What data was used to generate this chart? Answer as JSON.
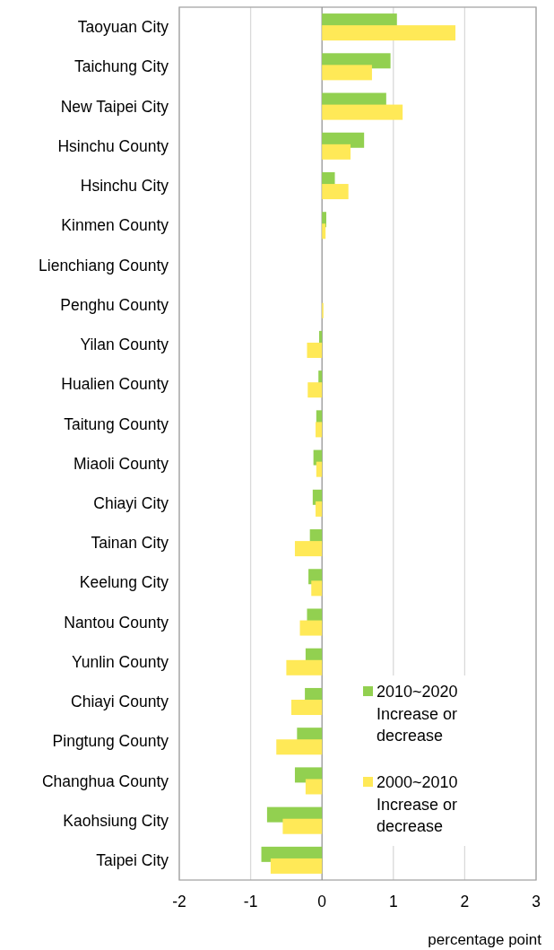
{
  "chart_data": {
    "type": "bar",
    "orientation": "horizontal",
    "xlabel": "percentage point",
    "categories": [
      "Taoyuan City",
      "Taichung City",
      "New Taipei City",
      "Hsinchu County",
      "Hsinchu City",
      "Kinmen County",
      "Lienchiang County",
      "Penghu County",
      "Yilan County",
      "Hualien County",
      "Taitung County",
      "Miaoli County",
      "Chiayi City",
      "Tainan City",
      "Keelung City",
      "Nantou County",
      "Yunlin County",
      "Chiayi County",
      "Pingtung County",
      "Changhua County",
      "Kaohsiung City",
      "Taipei City"
    ],
    "series": [
      {
        "name": "2010~2020 Increase or decrease",
        "color": "#92d050",
        "values": [
          1.05,
          0.96,
          0.9,
          0.59,
          0.18,
          0.06,
          0,
          0,
          -0.04,
          -0.05,
          -0.08,
          -0.12,
          -0.13,
          -0.17,
          -0.19,
          -0.21,
          -0.23,
          -0.24,
          -0.35,
          -0.38,
          -0.77,
          -0.85
        ]
      },
      {
        "name": "2000~2010 Increase or decrease",
        "color": "#ffe957",
        "values": [
          1.87,
          0.7,
          1.13,
          0.4,
          0.37,
          0.05,
          0,
          0.02,
          -0.21,
          -0.2,
          -0.09,
          -0.08,
          -0.09,
          -0.38,
          -0.15,
          -0.31,
          -0.5,
          -0.43,
          -0.64,
          -0.23,
          -0.55,
          -0.72
        ]
      }
    ],
    "xlim": [
      -2,
      3
    ],
    "xticks": [
      -2,
      -1,
      0,
      1,
      2,
      3
    ],
    "grid": "x",
    "legend": "bottom right"
  }
}
